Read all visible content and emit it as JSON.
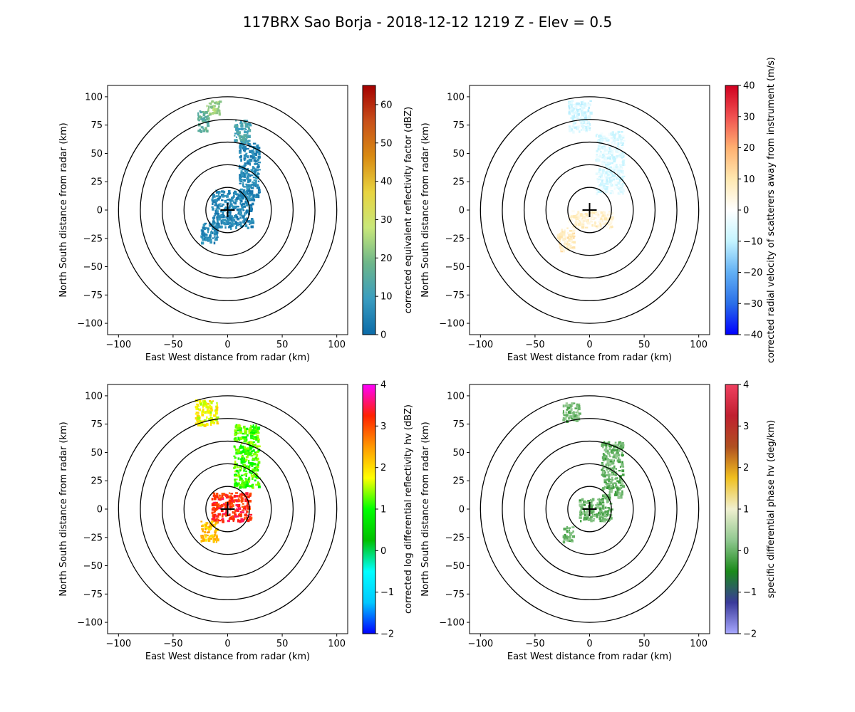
{
  "figure_title": "117BRX Sao Borja - 2018-12-12 1219 Z -  Elev = 0.5",
  "chart_data": [
    {
      "type": "heatmap",
      "panel": "top-left",
      "field": "reflectivity",
      "xlabel": "East West distance from radar (km)",
      "ylabel": "North South distance from radar (km)",
      "xlim": [
        -110,
        110
      ],
      "ylim": [
        -110,
        110
      ],
      "xticks": [
        -100,
        -50,
        0,
        50,
        100
      ],
      "yticks": [
        -100,
        -75,
        -50,
        -25,
        0,
        25,
        50,
        75,
        100
      ],
      "range_rings_km": [
        20,
        40,
        60,
        80,
        100
      ],
      "colorbar": {
        "label": "corrected equivalent reflectivity factor (dBZ)",
        "min": 0,
        "max": 65,
        "ticks": [
          0,
          10,
          20,
          30,
          40,
          50,
          60
        ],
        "stops": [
          "#0b6ba8",
          "#3a9dc0",
          "#6db68a",
          "#c8e77a",
          "#e8d440",
          "#d98b12",
          "#c8501a",
          "#a40000"
        ]
      },
      "echoes": [
        {
          "x": [
            -20,
            -8
          ],
          "y": [
            85,
            97
          ],
          "value": 24
        },
        {
          "x": [
            -28,
            -18
          ],
          "y": [
            70,
            88
          ],
          "value": 16
        },
        {
          "x": [
            5,
            20
          ],
          "y": [
            60,
            80
          ],
          "value": 12
        },
        {
          "x": [
            10,
            28
          ],
          "y": [
            10,
            60
          ],
          "value": 6
        },
        {
          "x": [
            -15,
            22
          ],
          "y": [
            -15,
            18
          ],
          "value": 5
        },
        {
          "x": [
            -25,
            -10
          ],
          "y": [
            -28,
            -10
          ],
          "value": 6
        }
      ]
    },
    {
      "type": "heatmap",
      "panel": "top-right",
      "field": "velocity",
      "xlabel": "East West distance from radar (km)",
      "ylabel": "North South distance from radar (km)",
      "xlim": [
        -110,
        110
      ],
      "ylim": [
        -110,
        110
      ],
      "xticks": [
        -100,
        -50,
        0,
        50,
        100
      ],
      "yticks": [
        -100,
        -75,
        -50,
        -25,
        0,
        25,
        50,
        75,
        100
      ],
      "range_rings_km": [
        20,
        40,
        60,
        80,
        100
      ],
      "colorbar": {
        "label": "corrected radial velocity of scatterers away from instrument (m/s)",
        "min": -40,
        "max": 40,
        "ticks": [
          -40,
          -30,
          -20,
          -10,
          0,
          10,
          20,
          30,
          40
        ],
        "stops": [
          "#0000ff",
          "#2a6fe8",
          "#62b0f4",
          "#c4f4ff",
          "#ffffff",
          "#ffe8b0",
          "#ffb070",
          "#f05050",
          "#d00020"
        ]
      },
      "echoes": [
        {
          "x": [
            -20,
            0
          ],
          "y": [
            70,
            97
          ],
          "value": -7
        },
        {
          "x": [
            5,
            30
          ],
          "y": [
            15,
            70
          ],
          "value": -6
        },
        {
          "x": [
            -20,
            20
          ],
          "y": [
            -15,
            0
          ],
          "value": 6
        },
        {
          "x": [
            -30,
            -15
          ],
          "y": [
            -35,
            -15
          ],
          "value": 8
        }
      ]
    },
    {
      "type": "heatmap",
      "panel": "bottom-left",
      "field": "differential_reflectivity",
      "xlabel": "East West distance from radar (km)",
      "ylabel": "North South distance from radar (km)",
      "xlim": [
        -110,
        110
      ],
      "ylim": [
        -110,
        110
      ],
      "xticks": [
        -100,
        -50,
        0,
        50,
        100
      ],
      "yticks": [
        -100,
        -75,
        -50,
        -25,
        0,
        25,
        50,
        75,
        100
      ],
      "range_rings_km": [
        20,
        40,
        60,
        80,
        100
      ],
      "colorbar": {
        "label": "corrected log differential reflectivity hv (dBZ)",
        "min": -2,
        "max": 4,
        "ticks": [
          -2,
          -1,
          0,
          1,
          2,
          3,
          4
        ],
        "stops": [
          "#0000ff",
          "#00c8ff",
          "#00ffff",
          "#00c000",
          "#00ff00",
          "#ffff00",
          "#ff9900",
          "#ff2200",
          "#ff00ff"
        ]
      },
      "echoes": [
        {
          "x": [
            -30,
            -10
          ],
          "y": [
            75,
            97
          ],
          "value": 1.8
        },
        {
          "x": [
            5,
            28
          ],
          "y": [
            20,
            75
          ],
          "value": 1.2
        },
        {
          "x": [
            -15,
            20
          ],
          "y": [
            -10,
            15
          ],
          "value": 3.2
        },
        {
          "x": [
            -25,
            -10
          ],
          "y": [
            -28,
            -10
          ],
          "value": 2.2
        }
      ]
    },
    {
      "type": "heatmap",
      "panel": "bottom-right",
      "field": "specific_differential_phase",
      "xlabel": "East West distance from radar (km)",
      "ylabel": "North South distance from radar (km)",
      "xlim": [
        -110,
        110
      ],
      "ylim": [
        -110,
        110
      ],
      "xticks": [
        -100,
        -50,
        0,
        50,
        100
      ],
      "yticks": [
        -100,
        -75,
        -50,
        -25,
        0,
        25,
        50,
        75,
        100
      ],
      "range_rings_km": [
        20,
        40,
        60,
        80,
        100
      ],
      "colorbar": {
        "label": "specific differential phase hv (deg/km)",
        "min": -2,
        "max": 4,
        "ticks": [
          -2,
          -1,
          0,
          1,
          2,
          3,
          4
        ],
        "stops": [
          "#a8a8ff",
          "#3a3a9a",
          "#1a8a1a",
          "#90c890",
          "#f0f0d0",
          "#f0c020",
          "#b05020",
          "#c02030",
          "#f04060"
        ]
      },
      "echoes": [
        {
          "x": [
            -25,
            -10
          ],
          "y": [
            78,
            95
          ],
          "value": 0.1
        },
        {
          "x": [
            10,
            30
          ],
          "y": [
            10,
            60
          ],
          "value": 0
        },
        {
          "x": [
            -10,
            20
          ],
          "y": [
            -10,
            10
          ],
          "value": 0
        },
        {
          "x": [
            -25,
            -15
          ],
          "y": [
            -28,
            -15
          ],
          "value": 0
        }
      ]
    }
  ]
}
